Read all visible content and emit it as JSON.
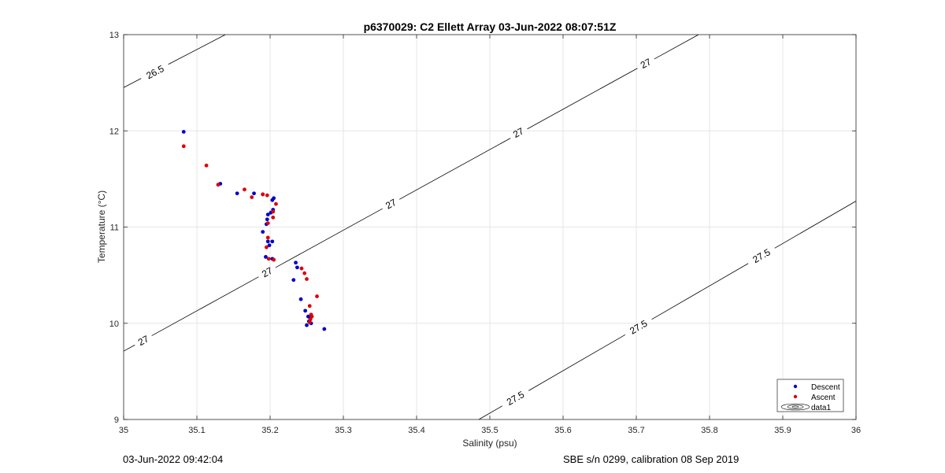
{
  "footer": {
    "left": "03-Jun-2022 09:42:04",
    "right": "SBE s/n 0299, calibration 08 Sep 2019"
  },
  "chart_data": {
    "type": "scatter",
    "title": "p6370029: C2 Ellett Array 03-Jun-2022 08:07:51Z",
    "xlabel": "Salinity (psu)",
    "ylabel": "Temperature (°C)",
    "xlim": [
      35,
      36
    ],
    "ylim": [
      9,
      13
    ],
    "x_ticks": [
      "35",
      "35.1",
      "35.2",
      "35.3",
      "35.4",
      "35.5",
      "35.6",
      "35.7",
      "35.8",
      "35.9",
      "36"
    ],
    "y_ticks": [
      "9",
      "10",
      "11",
      "12",
      "13"
    ],
    "grid": true,
    "legend_position": "bottom-right",
    "colors": {
      "Descent": "#0000cc",
      "Ascent": "#dd0000",
      "contour": "#000000",
      "grid": "#e6e6e6"
    },
    "series": [
      {
        "name": "Descent",
        "marker": "dot",
        "points": [
          [
            35.082,
            11.99
          ],
          [
            35.132,
            11.45
          ],
          [
            35.155,
            11.35
          ],
          [
            35.178,
            11.35
          ],
          [
            35.19,
            11.34
          ],
          [
            35.205,
            11.3
          ],
          [
            35.203,
            11.28
          ],
          [
            35.204,
            11.18
          ],
          [
            35.201,
            11.15
          ],
          [
            35.197,
            11.13
          ],
          [
            35.196,
            11.08
          ],
          [
            35.195,
            11.03
          ],
          [
            35.19,
            10.95
          ],
          [
            35.197,
            10.85
          ],
          [
            35.203,
            10.85
          ],
          [
            35.199,
            10.81
          ],
          [
            35.194,
            10.69
          ],
          [
            35.203,
            10.67
          ],
          [
            35.235,
            10.63
          ],
          [
            35.237,
            10.58
          ],
          [
            35.232,
            10.45
          ],
          [
            35.242,
            10.25
          ],
          [
            35.248,
            10.13
          ],
          [
            35.252,
            10.07
          ],
          [
            35.255,
            10.05
          ],
          [
            35.253,
            10.02
          ],
          [
            35.256,
            10.0
          ],
          [
            35.25,
            9.98
          ],
          [
            35.274,
            9.94
          ]
        ]
      },
      {
        "name": "Ascent",
        "marker": "dot",
        "points": [
          [
            35.082,
            11.84
          ],
          [
            35.113,
            11.64
          ],
          [
            35.129,
            11.44
          ],
          [
            35.165,
            11.39
          ],
          [
            35.175,
            11.31
          ],
          [
            35.19,
            11.34
          ],
          [
            35.196,
            11.33
          ],
          [
            35.208,
            11.24
          ],
          [
            35.204,
            11.16
          ],
          [
            35.204,
            11.1
          ],
          [
            35.197,
            11.04
          ],
          [
            35.197,
            10.89
          ],
          [
            35.195,
            10.79
          ],
          [
            35.198,
            10.67
          ],
          [
            35.205,
            10.66
          ],
          [
            35.243,
            10.57
          ],
          [
            35.247,
            10.52
          ],
          [
            35.25,
            10.46
          ],
          [
            35.264,
            10.28
          ],
          [
            35.254,
            10.18
          ],
          [
            35.256,
            10.09
          ],
          [
            35.257,
            10.07
          ],
          [
            35.255,
            10.04
          ],
          [
            35.254,
            10.01
          ]
        ]
      }
    ],
    "contours": [
      {
        "sigma": 26.5,
        "line": [
          [
            35.0,
            12.45
          ],
          [
            35.139,
            13.0
          ]
        ],
        "labels": [
          {
            "text": "26.5",
            "at": [
              35.043,
              12.61
            ]
          }
        ]
      },
      {
        "sigma": 27,
        "line": [
          [
            35.0,
            9.71
          ],
          [
            35.785,
            13.0
          ]
        ],
        "labels": [
          {
            "text": "27",
            "at": [
              35.027,
              9.82
            ]
          },
          {
            "text": "27",
            "at": [
              35.196,
              10.53
            ]
          },
          {
            "text": "27",
            "at": [
              35.365,
              11.24
            ]
          },
          {
            "text": "27",
            "at": [
              35.539,
              11.98
            ]
          },
          {
            "text": "27",
            "at": [
              35.713,
              12.7
            ]
          }
        ]
      },
      {
        "sigma": 27.5,
        "line": [
          [
            35.485,
            9.0
          ],
          [
            36.0,
            11.27
          ]
        ],
        "labels": [
          {
            "text": "27.5",
            "at": [
              35.535,
              9.22
            ]
          },
          {
            "text": "27.5",
            "at": [
              35.703,
              9.96
            ]
          },
          {
            "text": "27.5",
            "at": [
              35.871,
              10.7
            ]
          }
        ]
      }
    ],
    "legend": [
      {
        "label": "Descent",
        "symbol": "blue-dot"
      },
      {
        "label": "Ascent",
        "symbol": "red-dot"
      },
      {
        "label": "data1",
        "symbol": "contour-ellipse-icon"
      }
    ]
  }
}
